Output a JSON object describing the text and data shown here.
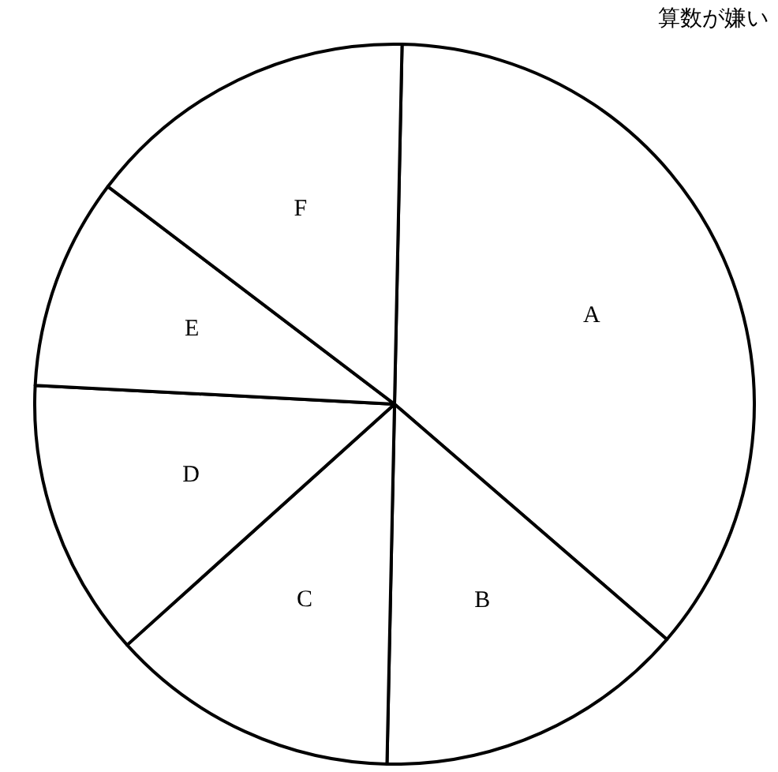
{
  "chart_data": {
    "type": "pie",
    "title": "算数が嫌い",
    "categories": [
      "A",
      "B",
      "C",
      "D",
      "E",
      "F"
    ],
    "values": [
      36,
      14,
      13,
      12.5,
      9.5,
      15
    ],
    "colors": [
      "#ffffff",
      "#ffffff",
      "#ffffff",
      "#ffffff",
      "#ffffff",
      "#ffffff"
    ]
  }
}
